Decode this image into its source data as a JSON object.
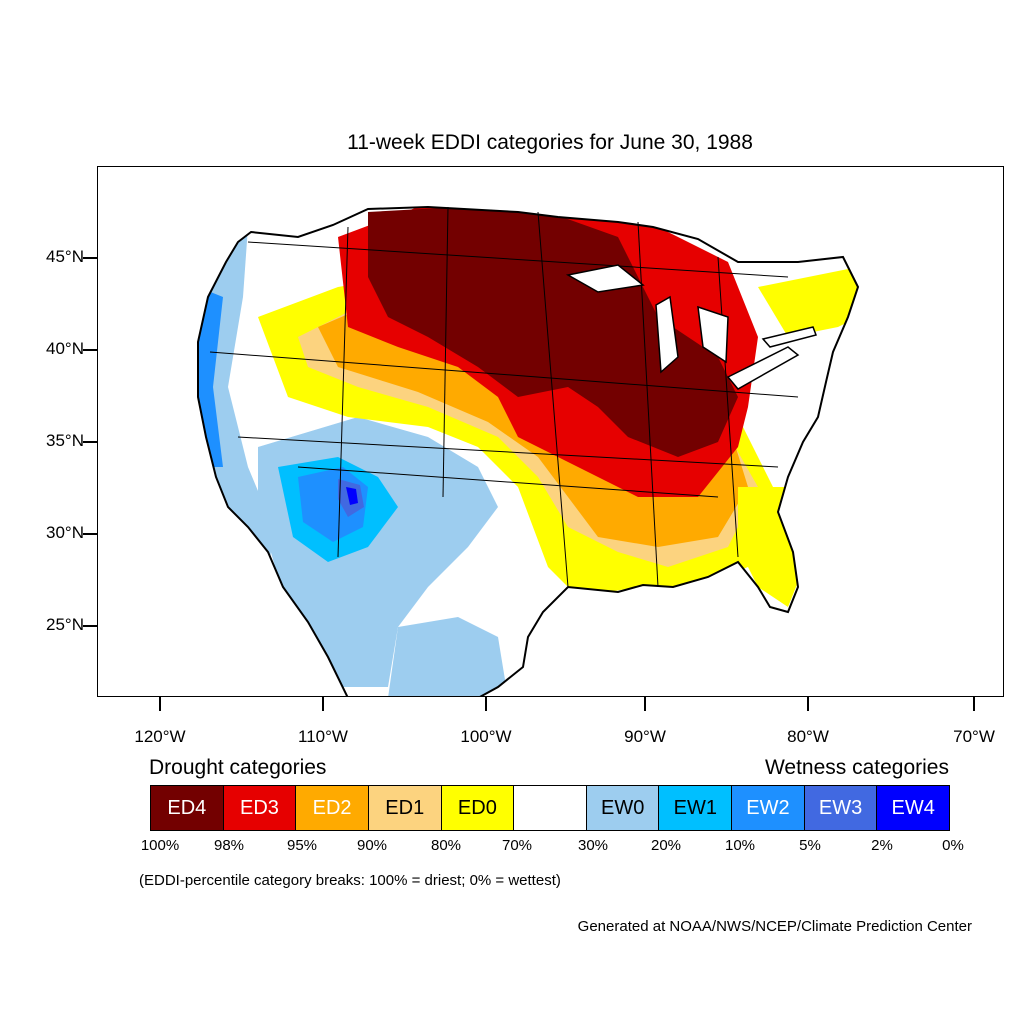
{
  "title": "11-week EDDI categories for June 30, 1988",
  "latitude_labels": [
    "45°N",
    "40°N",
    "35°N",
    "30°N",
    "25°N"
  ],
  "longitude_labels": [
    "120°W",
    "110°W",
    "100°W",
    "90°W",
    "80°W",
    "70°W"
  ],
  "legend": {
    "drought_heading": "Drought categories",
    "wetness_heading": "Wetness categories",
    "categories": [
      {
        "label": "ED4",
        "color": "#730000",
        "text_color": "#ffffff"
      },
      {
        "label": "ED3",
        "color": "#e60000",
        "text_color": "#ffffff"
      },
      {
        "label": "ED2",
        "color": "#ffaa00",
        "text_color": "#ffffff"
      },
      {
        "label": "ED1",
        "color": "#fcd37f",
        "text_color": "#000000"
      },
      {
        "label": "ED0",
        "color": "#ffff00",
        "text_color": "#000000"
      },
      {
        "label": "",
        "color": "#ffffff",
        "text_color": "#000000"
      },
      {
        "label": "EW0",
        "color": "#9dcdef",
        "text_color": "#000000"
      },
      {
        "label": "EW1",
        "color": "#00bfff",
        "text_color": "#000000"
      },
      {
        "label": "EW2",
        "color": "#1e90ff",
        "text_color": "#ffffff"
      },
      {
        "label": "EW3",
        "color": "#4169e1",
        "text_color": "#ffffff"
      },
      {
        "label": "EW4",
        "color": "#0000ff",
        "text_color": "#ffffff"
      }
    ],
    "breaks": [
      "100%",
      "98%",
      "95%",
      "90%",
      "80%",
      "70%",
      "30%",
      "20%",
      "10%",
      "5%",
      "2%",
      "0%"
    ]
  },
  "break_note": "(EDDI-percentile category breaks: 100% = driest; 0% = wettest)",
  "credit": "Generated at NOAA/NWS/NCEP/Climate Prediction Center"
}
